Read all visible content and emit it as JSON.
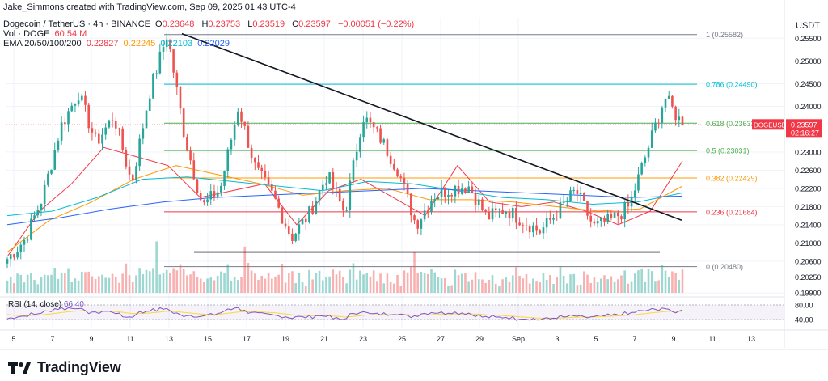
{
  "header": {
    "credit": "Jake_Simmons created with TradingView.com, Sep 09, 2025 01:43 UTC-4",
    "symbol": "Dogecoin / TetherUS · 4h · BINANCE",
    "ohlc": [
      {
        "k": "O",
        "v": "0.23648"
      },
      {
        "k": "H",
        "v": "0.23753"
      },
      {
        "k": "L",
        "v": "0.23519"
      },
      {
        "k": "C",
        "v": "0.23597"
      }
    ],
    "change": "−0.00051 (−0.22%)",
    "vol_label": "Vol · DOGE",
    "vol_value": "60.54 M",
    "ema_label": "EMA 20/50/100/200",
    "ema_values": [
      "0.22827",
      "0.22245",
      "0.22103",
      "0.22029"
    ],
    "rsi_label": "RSI (14, close)",
    "rsi_value": "66.40"
  },
  "axis": {
    "currency": "USDT",
    "price_ticks": [
      "0.25500",
      "0.25000",
      "0.24500",
      "0.24000",
      "0.23500",
      "0.23000",
      "0.22600",
      "0.22200",
      "0.21800",
      "0.21400",
      "0.21000",
      "0.20600",
      "0.20250",
      "0.19900"
    ],
    "rsi_ticks": [
      "80.00",
      "40.00"
    ],
    "date_ticks": [
      "5",
      "7",
      "9",
      "11",
      "13",
      "15",
      "17",
      "19",
      "21",
      "23",
      "25",
      "27",
      "29",
      "Sep",
      "3",
      "5",
      "7",
      "9",
      "11",
      "13"
    ]
  },
  "price_tag": {
    "symbol": "DOGEUSDT",
    "price": "0.23597",
    "countdown": "02:16:27",
    "color": "#f23645"
  },
  "fib_levels": [
    {
      "label": "1 (0.25582)",
      "value": 0.25582,
      "color": "#787b86"
    },
    {
      "label": "0.786 (0.24490)",
      "value": 0.2449,
      "color": "#00bcd4"
    },
    {
      "label": "0.618 (0.23633)",
      "value": 0.23633,
      "color": "#4caf50"
    },
    {
      "label": "0.5 (0.23031)",
      "value": 0.23031,
      "color": "#4caf50"
    },
    {
      "label": "0.382 (0.22429)",
      "value": 0.22429,
      "color": "#ff9800"
    },
    {
      "label": "0.236 (0.21684)",
      "value": 0.21684,
      "color": "#f23645"
    },
    {
      "label": "0 (0.20480)",
      "value": 0.2048,
      "color": "#787b86"
    }
  ],
  "colors": {
    "up": "#26a69a",
    "down": "#ef5350",
    "grid": "#f0f3fa",
    "rsi": "#7e57c2",
    "rsi_ma": "#fdd835"
  },
  "brand": {
    "logo_text": "TradingView",
    "logo_icon": "tradingview-logo-icon"
  },
  "chart_data": {
    "type": "candlestick",
    "title": "Dogecoin / TetherUS · 4h · BINANCE",
    "ylim": [
      0.1985,
      0.2595
    ],
    "anchors": [
      [
        "Sep 5",
        0.2065
      ],
      [
        "Sep 6",
        0.2108
      ],
      [
        "Sep 7",
        0.2202
      ],
      [
        "Sep 8",
        0.2355
      ],
      [
        "Sep 9",
        0.243
      ],
      [
        "Sep 10",
        0.232
      ],
      [
        "Sep 11",
        0.238
      ],
      [
        "Sep 12",
        0.223
      ],
      [
        "Sep 13",
        0.243
      ],
      [
        "Sep 14",
        0.256
      ],
      [
        "Sep 14b",
        0.233
      ],
      [
        "Sep 15",
        0.218
      ],
      [
        "Sep 16",
        0.222
      ],
      [
        "Sep 17",
        0.24
      ],
      [
        "Sep 18",
        0.226
      ],
      [
        "Sep 19",
        0.22
      ],
      [
        "Sep 20",
        0.2112
      ],
      [
        "Sep 21",
        0.2165
      ],
      [
        "Sep 22",
        0.225
      ],
      [
        "Sep 22b",
        0.2165
      ],
      [
        "Sep 23",
        0.238
      ],
      [
        "Sep 24",
        0.233
      ],
      [
        "Sep 25",
        0.226
      ],
      [
        "Sep 26",
        0.214
      ],
      [
        "Sep 27",
        0.2205
      ],
      [
        "Sep 28",
        0.222
      ],
      [
        "Sep 29",
        0.2225
      ],
      [
        "Aug 30",
        0.2155
      ],
      [
        "Aug 31",
        0.2175
      ],
      [
        "Sep 1",
        0.215
      ],
      [
        "Sep 2",
        0.2125
      ],
      [
        "Sep 3",
        0.217
      ],
      [
        "Sep 4",
        0.2215
      ],
      [
        "Sep 5b",
        0.2135
      ],
      [
        "Sep 6b",
        0.215
      ],
      [
        "Sep 7b",
        0.218
      ],
      [
        "Sep 8b",
        0.23
      ],
      [
        "Sep 8c",
        0.242
      ],
      [
        "Sep 9b",
        0.23597
      ]
    ],
    "series": [
      {
        "name": "EMA 20",
        "color": "#f23645",
        "values": [
          0.207,
          0.217,
          0.223,
          0.231,
          0.229,
          0.227,
          0.22,
          0.2215,
          0.223,
          0.214,
          0.2215,
          0.224,
          0.22,
          0.216,
          0.227,
          0.219,
          0.218,
          0.219,
          0.217,
          0.214,
          0.217,
          0.228
        ]
      },
      {
        "name": "EMA 50",
        "color": "#ff9800",
        "values": [
          0.208,
          0.215,
          0.219,
          0.224,
          0.227,
          0.225,
          0.223,
          0.2205,
          0.2215,
          0.222,
          0.2195,
          0.2195,
          0.219,
          0.218,
          0.217,
          0.2175,
          0.2225
        ]
      },
      {
        "name": "EMA 100",
        "color": "#00bcd4",
        "values": [
          0.216,
          0.217,
          0.22,
          0.224,
          0.2245,
          0.2235,
          0.2225,
          0.2215,
          0.2235,
          0.223,
          0.2215,
          0.22,
          0.2195,
          0.2185,
          0.219,
          0.221
        ]
      },
      {
        "name": "EMA 200",
        "color": "#2962ff",
        "values": [
          0.214,
          0.2155,
          0.2175,
          0.219,
          0.22,
          0.2205,
          0.221,
          0.2215,
          0.222,
          0.2215,
          0.221,
          0.2205,
          0.22,
          0.2203
        ]
      }
    ],
    "trendlines": [
      {
        "name": "descending-resistance",
        "from": [
          0.256
        ],
        "to": [
          0.215
        ]
      },
      {
        "name": "horizontal-support",
        "from": [
          0.208
        ],
        "to": [
          0.208
        ]
      }
    ],
    "rsi": {
      "ylim": [
        20,
        100
      ],
      "last": 66.4
    }
  }
}
